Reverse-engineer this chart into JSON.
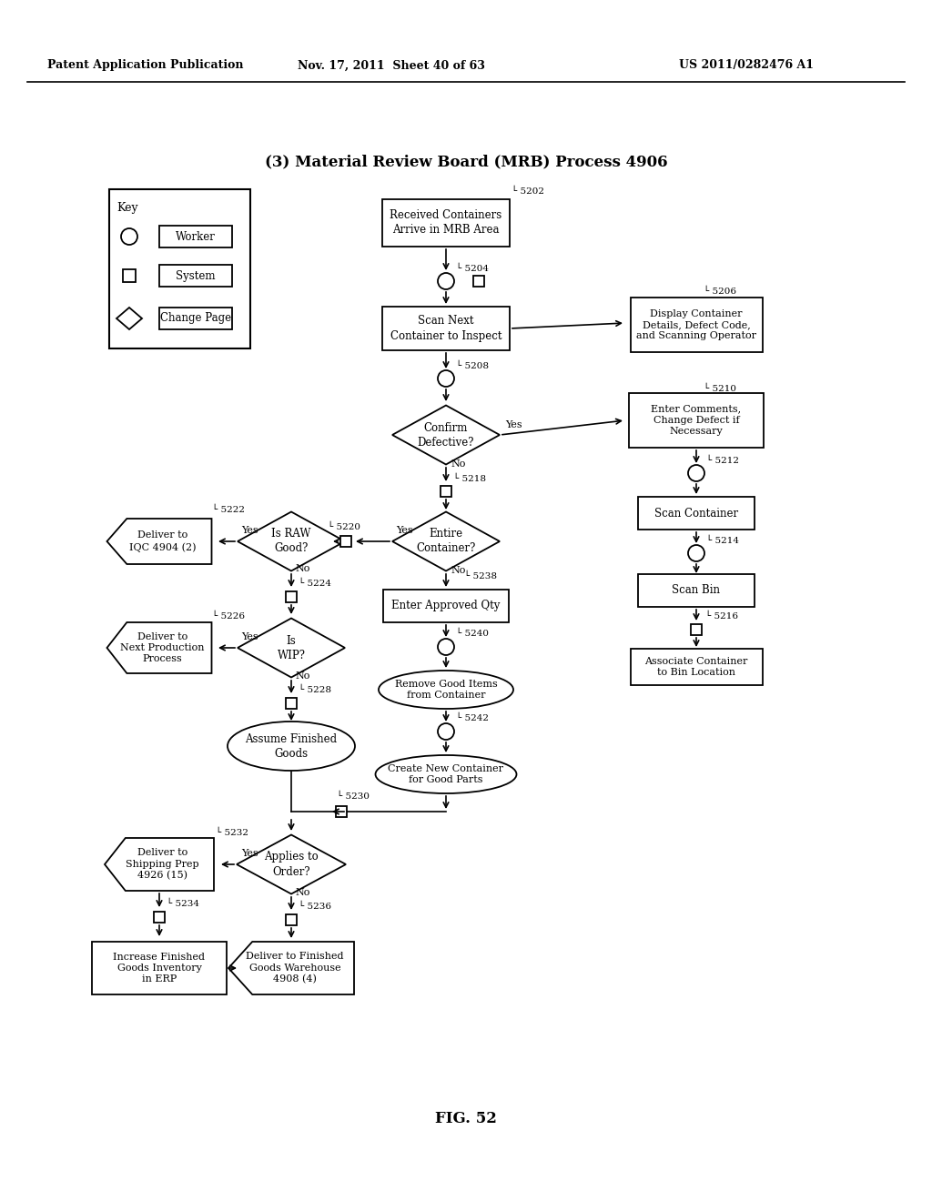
{
  "title": "(3) Material Review Board (MRB) Process 4906",
  "fig_label": "FIG. 52",
  "header_left": "Patent Application Publication",
  "header_mid": "Nov. 17, 2011  Sheet 40 of 63",
  "header_right": "US 2011/0282476 A1",
  "bg_color": "#ffffff"
}
